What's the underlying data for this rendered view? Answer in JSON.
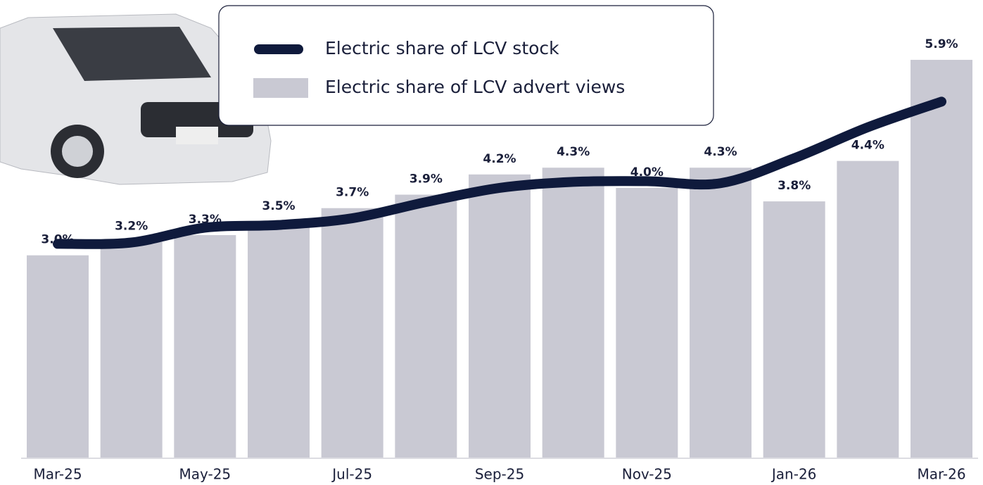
{
  "chart_data": {
    "type": "bar_line",
    "categories": [
      "Mar-25",
      null,
      "May-25",
      null,
      "Jul-25",
      null,
      "Sep-25",
      null,
      "Nov-25",
      null,
      "Jan-26",
      null,
      "Mar-26"
    ],
    "series": [
      {
        "name": "Electric share of LCV stock",
        "type": "line",
        "color": "#0f1a3c",
        "values": [
          3.17,
          3.19,
          3.41,
          3.45,
          3.55,
          3.79,
          4.0,
          4.09,
          4.1,
          4.07,
          4.44,
          4.9,
          5.28
        ]
      },
      {
        "name": "Electric share of LCV advert views",
        "type": "bar",
        "color": "#c9c9d3",
        "values": [
          3.0,
          3.2,
          3.3,
          3.5,
          3.7,
          3.9,
          4.2,
          4.3,
          4.0,
          4.3,
          3.8,
          4.4,
          5.9
        ],
        "value_labels": [
          "3.0%",
          "3.2%",
          "3.3%",
          "3.5%",
          "3.7%",
          "3.9%",
          "4.2%",
          "4.3%",
          "4.0%",
          "4.3%",
          "3.8%",
          "4.4%",
          "5.9%"
        ]
      }
    ]
  }
}
